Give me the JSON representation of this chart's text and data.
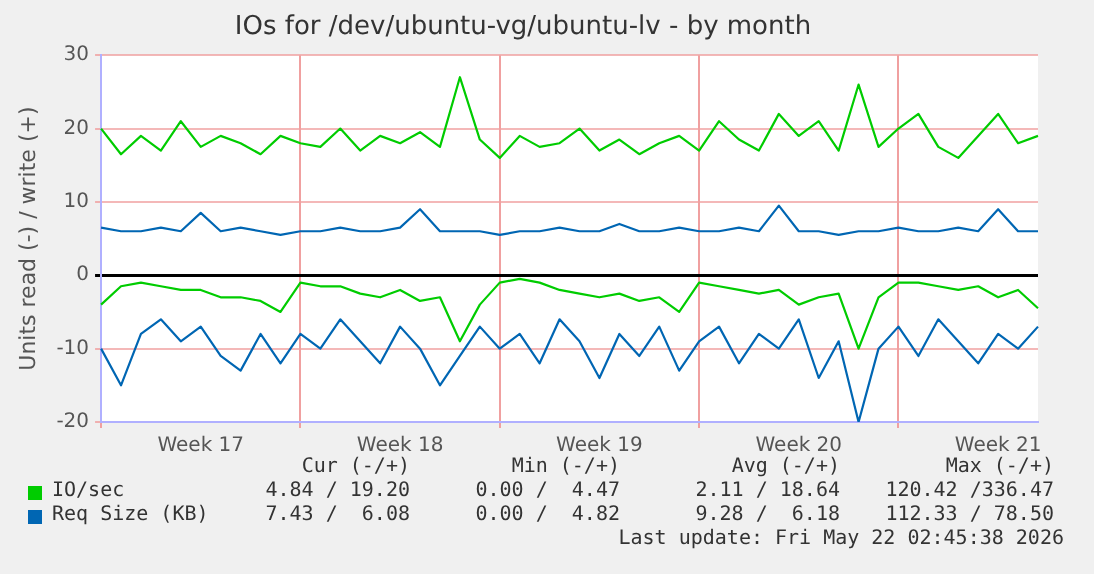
{
  "chart_data": {
    "type": "line",
    "title": "IOs for /dev/ubuntu-vg/ubuntu-lv - by month",
    "ylabel": "Units read (-) / write (+)",
    "categories": [
      null,
      null,
      null,
      null,
      null,
      "Week 17",
      null,
      null,
      null,
      null,
      null,
      null,
      null,
      null,
      null,
      "Week 18",
      null,
      null,
      null,
      null,
      null,
      null,
      null,
      null,
      null,
      "Week 19",
      null,
      null,
      null,
      null,
      null,
      null,
      null,
      null,
      null,
      "Week 20",
      null,
      null,
      null,
      null,
      null,
      null,
      null,
      null,
      null,
      "Week 21",
      null,
      null
    ],
    "ylim": [
      -20,
      30
    ],
    "yticks": [
      -20,
      -10,
      0,
      10,
      20,
      30
    ],
    "grid": true,
    "legend": "bottom",
    "series": [
      {
        "name": "IO/sec",
        "color": "#00cc00",
        "values": [
          20,
          16.5,
          19,
          17,
          21,
          17.5,
          19,
          18,
          16.5,
          19,
          18,
          17.5,
          20,
          17,
          19,
          18,
          19.5,
          17.5,
          27,
          18.5,
          16,
          19,
          17.5,
          18,
          20,
          17,
          18.5,
          16.5,
          18,
          19,
          17,
          21,
          18.5,
          17,
          22,
          19,
          21,
          17,
          26,
          17.5,
          20,
          22,
          17.5,
          16,
          19,
          22,
          18,
          19
        ]
      },
      {
        "name": "Req Size (KB)",
        "color": "#0066b3",
        "values": [
          6.5,
          6,
          6,
          6.5,
          6,
          8.5,
          6,
          6.5,
          6,
          5.5,
          6,
          6,
          6.5,
          6,
          6,
          6.5,
          9,
          6,
          6,
          6,
          5.5,
          6,
          6,
          6.5,
          6,
          6,
          7,
          6,
          6,
          6.5,
          6,
          6,
          6.5,
          6,
          9.5,
          6,
          6,
          5.5,
          6,
          6,
          6.5,
          6,
          6,
          6.5,
          6,
          9,
          6,
          6
        ]
      },
      {
        "color": "#00cc00",
        "values": [
          -4,
          -1.5,
          -1,
          -1.5,
          -2,
          -2,
          -3,
          -3,
          -3.5,
          -5,
          -1,
          -1.5,
          -1.5,
          -2.5,
          -3,
          -2,
          -3.5,
          -3,
          -9,
          -4,
          -1,
          -0.5,
          -1,
          -2,
          -2.5,
          -3,
          -2.5,
          -3.5,
          -3,
          -5,
          -1,
          -1.5,
          -2,
          -2.5,
          -2,
          -4,
          -3,
          -2.5,
          -10,
          -3,
          -1,
          -1,
          -1.5,
          -2,
          -1.5,
          -3,
          -2,
          -4.5
        ]
      },
      {
        "color": "#0066b3",
        "values": [
          -10,
          -15,
          -8,
          -6,
          -9,
          -7,
          -11,
          -13,
          -8,
          -12,
          -8,
          -10,
          -6,
          -9,
          -12,
          -7,
          -10,
          -15,
          -11,
          -7,
          -10,
          -8,
          -12,
          -6,
          -9,
          -14,
          -8,
          -11,
          -7,
          -13,
          -9,
          -7,
          -12,
          -8,
          -10,
          -6,
          -14,
          -9,
          -20,
          -10,
          -7,
          -11,
          -6,
          -9,
          -12,
          -8,
          -10,
          -7
        ]
      }
    ],
    "annotations": [
      "Cur (-/+)",
      "Min (-/+)",
      "Avg (-/+)",
      "Max (-/+)",
      "4.84 / 19.20",
      "0.00 /  4.47",
      "2.11 / 18.64",
      "120.42 /336.47",
      "7.43 /  6.08",
      "0.00 /  4.82",
      "9.28 /  6.18",
      "112.33 / 78.50",
      "Last update: Fri May 22 02:45:38 2026"
    ]
  }
}
